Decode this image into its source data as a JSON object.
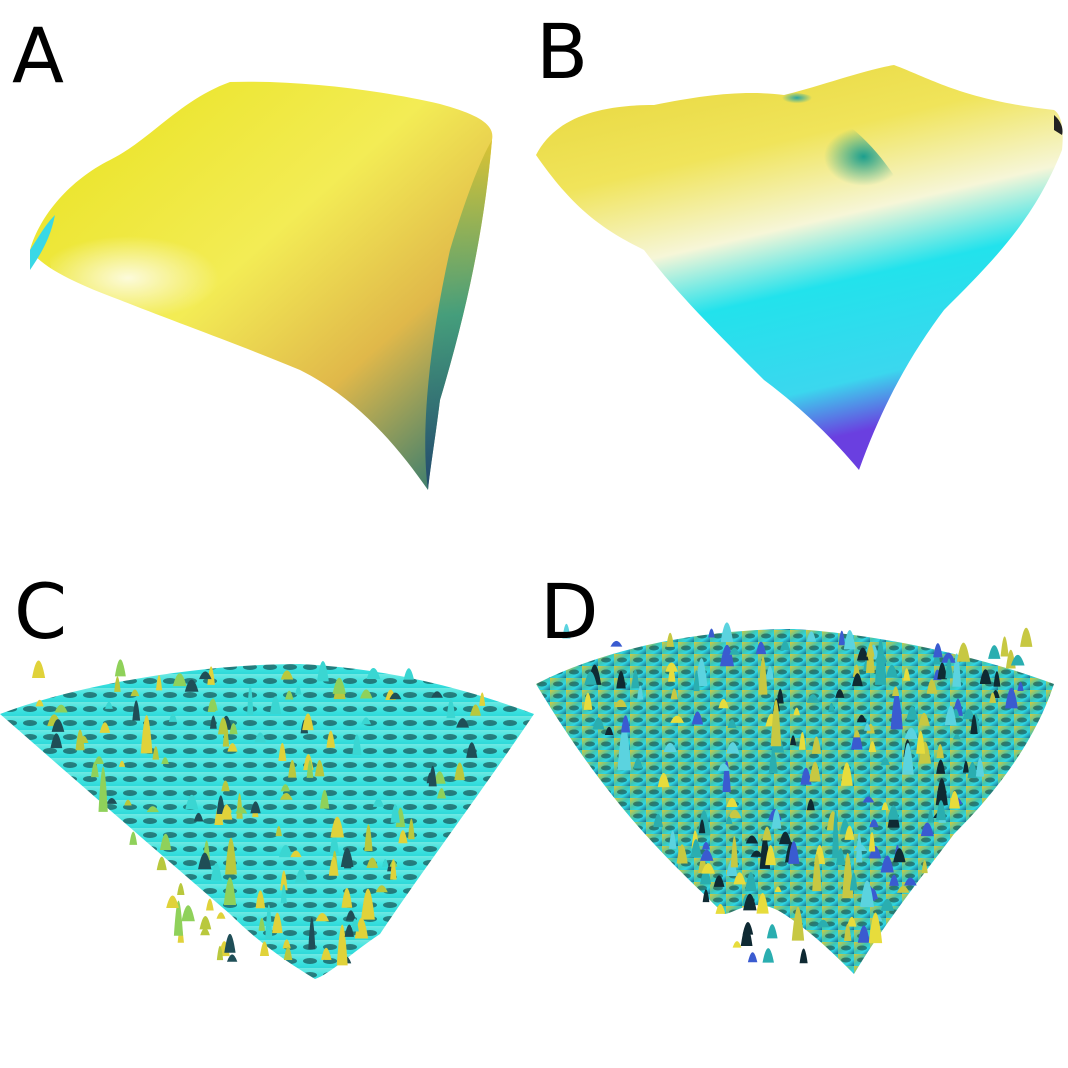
{
  "panels": [
    {
      "id": "A",
      "label": "A",
      "colormap": "viridis-lit",
      "accent": "#e6e21a"
    },
    {
      "id": "B",
      "label": "B",
      "colormap": "viridis-lit",
      "accent": "#16e8ee"
    },
    {
      "id": "C",
      "label": "C",
      "colormap": "viridis-lit",
      "accent": "#4de7e3"
    },
    {
      "id": "D",
      "label": "D",
      "colormap": "viridis-lit",
      "accent": "#d9d43a"
    }
  ]
}
